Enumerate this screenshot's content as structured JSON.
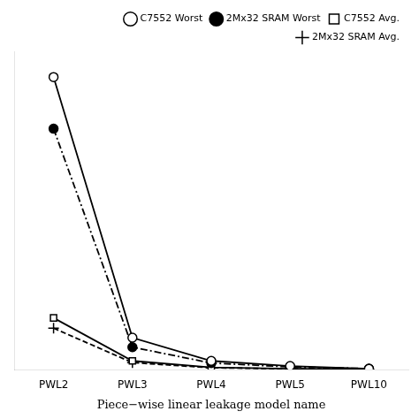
{
  "chart_data": {
    "type": "line",
    "x_label": "Piece−wise linear leakage model name",
    "categories": [
      "PWL2",
      "PWL3",
      "PWL4",
      "PWL5",
      "PWL10"
    ],
    "series": [
      {
        "name": "C7552 Worst",
        "color": "#000000",
        "values": [
          340,
          37,
          10,
          4,
          0.8
        ],
        "marker": "open_circle",
        "line_style": "solid"
      },
      {
        "name": "2Mx32 SRAM Worst",
        "color": "#000000",
        "values": [
          280,
          26,
          7.5,
          3.0,
          1.0
        ],
        "marker": "filled_circle",
        "line_style": "dashdot"
      },
      {
        "name": "C7552 Avg.",
        "color": "#000000",
        "values": [
          60,
          10,
          2.5,
          1.0,
          0.3
        ],
        "marker": "open_square",
        "line_style": "solid"
      },
      {
        "name": "2Mx32 SRAM Avg.",
        "color": "#000000",
        "values": [
          48,
          8,
          2.0,
          0.8,
          0.2
        ],
        "marker": "plus",
        "line_style": "dashed"
      }
    ],
    "ylim": [
      0,
      370
    ],
    "yticks": [],
    "tick_labels": "x",
    "grid": false,
    "legend": "upper right"
  }
}
